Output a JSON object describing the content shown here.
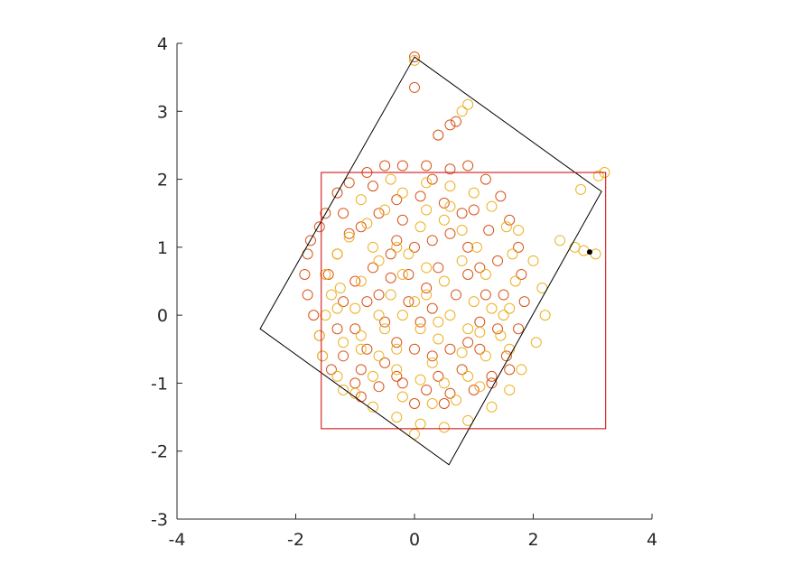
{
  "chart_data": {
    "type": "scatter",
    "title": "",
    "xlabel": "",
    "ylabel": "",
    "xlim": [
      -4,
      4
    ],
    "ylim": [
      -3,
      4
    ],
    "x_ticks": [
      -4,
      -2,
      0,
      2,
      4
    ],
    "y_ticks": [
      -3,
      -2,
      -1,
      0,
      1,
      2,
      3,
      4
    ],
    "x_tick_labels": [
      "-4",
      "-2",
      "0",
      "2",
      "4"
    ],
    "y_tick_labels": [
      "-3",
      "-2",
      "-1",
      "0",
      "1",
      "2",
      "3",
      "4"
    ],
    "grid": false,
    "legend": "none",
    "colors": {
      "series_a": "#d95319",
      "series_b": "#edb120",
      "bounding_box": "#cc0000",
      "rotated_box": "#000000",
      "axes": "#262626"
    },
    "series": [
      {
        "color": "#d95319",
        "marker": "open-circle",
        "points": [
          [
            0.0,
            3.8
          ],
          [
            0.0,
            3.35
          ],
          [
            0.4,
            2.65
          ],
          [
            0.6,
            2.8
          ],
          [
            0.7,
            2.85
          ],
          [
            -1.75,
            1.1
          ],
          [
            -1.8,
            0.9
          ],
          [
            -1.85,
            0.6
          ],
          [
            -1.8,
            0.3
          ],
          [
            -1.7,
            0.0
          ],
          [
            -1.6,
            -0.3
          ],
          [
            -1.55,
            -0.6
          ],
          [
            -1.6,
            1.3
          ],
          [
            -1.5,
            1.5
          ],
          [
            -1.3,
            1.8
          ],
          [
            -1.1,
            1.95
          ],
          [
            -0.8,
            2.1
          ],
          [
            -0.5,
            2.2
          ],
          [
            -0.2,
            2.2
          ],
          [
            0.2,
            2.2
          ],
          [
            0.6,
            2.15
          ],
          [
            0.9,
            2.2
          ],
          [
            1.2,
            2.0
          ],
          [
            1.45,
            1.75
          ],
          [
            1.6,
            1.4
          ],
          [
            1.75,
            1.0
          ],
          [
            1.8,
            0.6
          ],
          [
            1.85,
            0.2
          ],
          [
            1.75,
            -0.2
          ],
          [
            1.55,
            -0.6
          ],
          [
            1.3,
            -0.9
          ],
          [
            1.0,
            -1.1
          ],
          [
            0.6,
            -1.15
          ],
          [
            0.2,
            -1.1
          ],
          [
            -0.2,
            -1.0
          ],
          [
            -0.6,
            -1.05
          ],
          [
            -1.0,
            -1.0
          ],
          [
            -1.2,
            -0.6
          ],
          [
            -1.3,
            -0.2
          ],
          [
            -1.2,
            0.2
          ],
          [
            -1.0,
            0.5
          ],
          [
            -0.7,
            0.7
          ],
          [
            -0.4,
            0.9
          ],
          [
            0.0,
            1.0
          ],
          [
            0.3,
            1.1
          ],
          [
            0.6,
            1.2
          ],
          [
            0.9,
            1.0
          ],
          [
            1.1,
            0.7
          ],
          [
            1.2,
            0.3
          ],
          [
            1.1,
            -0.1
          ],
          [
            0.9,
            -0.4
          ],
          [
            0.6,
            -0.5
          ],
          [
            0.3,
            -0.6
          ],
          [
            0.0,
            -0.5
          ],
          [
            -0.3,
            -0.4
          ],
          [
            -0.5,
            -0.1
          ],
          [
            -0.6,
            0.3
          ],
          [
            -0.4,
            0.55
          ],
          [
            -0.1,
            0.6
          ],
          [
            0.2,
            0.4
          ],
          [
            0.3,
            0.1
          ],
          [
            0.1,
            -0.1
          ],
          [
            -0.1,
            0.2
          ],
          [
            -0.9,
            1.3
          ],
          [
            -0.6,
            1.5
          ],
          [
            -0.3,
            1.7
          ],
          [
            0.1,
            1.75
          ],
          [
            0.5,
            1.65
          ],
          [
            0.8,
            1.5
          ],
          [
            -1.1,
            1.2
          ],
          [
            -1.3,
            0.9
          ],
          [
            -1.45,
            0.6
          ],
          [
            -1.0,
            -0.2
          ],
          [
            -0.8,
            -0.5
          ],
          [
            -0.5,
            -0.7
          ],
          [
            -0.3,
            -0.9
          ],
          [
            0.4,
            -0.9
          ],
          [
            0.8,
            -0.8
          ],
          [
            1.1,
            -0.5
          ],
          [
            1.4,
            -0.2
          ],
          [
            1.5,
            0.3
          ],
          [
            1.4,
            0.8
          ],
          [
            1.25,
            1.25
          ],
          [
            1.0,
            1.55
          ],
          [
            -0.7,
            1.9
          ],
          [
            0.3,
            2.0
          ],
          [
            -1.4,
            -0.8
          ],
          [
            -0.9,
            -1.2
          ],
          [
            0.0,
            -1.3
          ],
          [
            0.5,
            -1.3
          ],
          [
            -1.2,
            1.5
          ],
          [
            -0.2,
            1.4
          ],
          [
            0.4,
            0.7
          ],
          [
            0.7,
            0.3
          ],
          [
            0.9,
            0.6
          ],
          [
            -0.3,
            1.1
          ],
          [
            -0.8,
            0.2
          ],
          [
            -0.9,
            -0.8
          ],
          [
            1.3,
            -1.0
          ],
          [
            1.6,
            -0.8
          ]
        ]
      },
      {
        "color": "#edb120",
        "marker": "open-circle",
        "points": [
          [
            0.0,
            3.75
          ],
          [
            0.9,
            3.1
          ],
          [
            0.8,
            3.0
          ],
          [
            2.8,
            1.85
          ],
          [
            3.1,
            2.05
          ],
          [
            3.2,
            2.1
          ],
          [
            2.45,
            1.1
          ],
          [
            2.7,
            1.0
          ],
          [
            2.85,
            0.95
          ],
          [
            3.05,
            0.9
          ],
          [
            1.75,
            1.25
          ],
          [
            2.0,
            0.8
          ],
          [
            2.15,
            0.4
          ],
          [
            2.2,
            0.0
          ],
          [
            2.05,
            -0.4
          ],
          [
            1.8,
            -0.8
          ],
          [
            1.6,
            -1.1
          ],
          [
            1.3,
            -1.35
          ],
          [
            0.9,
            -1.55
          ],
          [
            0.5,
            -1.65
          ],
          [
            0.1,
            -1.6
          ],
          [
            -0.3,
            -1.5
          ],
          [
            -0.7,
            -1.35
          ],
          [
            -1.0,
            -1.15
          ],
          [
            -1.3,
            -0.9
          ],
          [
            -1.55,
            -0.6
          ],
          [
            -1.6,
            -0.3
          ],
          [
            -1.5,
            0.0
          ],
          [
            -1.4,
            0.3
          ],
          [
            -1.5,
            0.6
          ],
          [
            -1.3,
            0.9
          ],
          [
            -1.1,
            1.15
          ],
          [
            -0.8,
            1.35
          ],
          [
            -0.5,
            1.55
          ],
          [
            -0.2,
            1.8
          ],
          [
            0.2,
            1.95
          ],
          [
            0.6,
            1.9
          ],
          [
            1.0,
            1.8
          ],
          [
            1.3,
            1.6
          ],
          [
            1.55,
            1.3
          ],
          [
            1.65,
            0.9
          ],
          [
            1.7,
            0.5
          ],
          [
            1.6,
            0.1
          ],
          [
            1.45,
            -0.3
          ],
          [
            1.2,
            -0.6
          ],
          [
            0.9,
            -0.9
          ],
          [
            0.5,
            -1.0
          ],
          [
            0.1,
            -0.95
          ],
          [
            -0.3,
            -0.8
          ],
          [
            -0.6,
            -0.6
          ],
          [
            -0.9,
            -0.3
          ],
          [
            -1.0,
            0.1
          ],
          [
            -0.9,
            0.5
          ],
          [
            -0.6,
            0.8
          ],
          [
            -0.3,
            1.0
          ],
          [
            0.1,
            1.3
          ],
          [
            0.5,
            1.4
          ],
          [
            0.8,
            1.25
          ],
          [
            1.05,
            1.0
          ],
          [
            1.2,
            0.6
          ],
          [
            1.3,
            0.1
          ],
          [
            1.1,
            -0.25
          ],
          [
            0.8,
            -0.55
          ],
          [
            0.4,
            -0.35
          ],
          [
            0.1,
            -0.2
          ],
          [
            -0.2,
            0.0
          ],
          [
            -0.4,
            0.3
          ],
          [
            -0.2,
            0.6
          ],
          [
            0.2,
            0.7
          ],
          [
            0.5,
            0.5
          ],
          [
            0.6,
            0.0
          ],
          [
            0.4,
            -0.1
          ],
          [
            0.0,
            0.2
          ],
          [
            0.2,
            0.3
          ],
          [
            -0.7,
            -0.9
          ],
          [
            -0.2,
            -1.2
          ],
          [
            0.3,
            -1.3
          ],
          [
            0.7,
            -1.25
          ],
          [
            1.1,
            -1.05
          ],
          [
            -1.2,
            -0.4
          ],
          [
            -1.25,
            0.4
          ],
          [
            -0.7,
            1.0
          ],
          [
            -1.2,
            -1.1
          ],
          [
            0.8,
            0.8
          ],
          [
            1.0,
            0.2
          ],
          [
            0.3,
            -0.7
          ],
          [
            -0.5,
            -0.2
          ],
          [
            -0.3,
            -0.5
          ],
          [
            -0.9,
            1.7
          ],
          [
            -0.4,
            2.0
          ],
          [
            0.6,
            1.6
          ],
          [
            1.5,
            0.0
          ],
          [
            0.0,
            -1.75
          ],
          [
            -0.9,
            -0.5
          ],
          [
            0.9,
            -0.2
          ],
          [
            -0.1,
            0.9
          ],
          [
            -0.6,
            0.0
          ],
          [
            1.6,
            -0.5
          ],
          [
            -1.3,
            0.1
          ],
          [
            0.2,
            1.55
          ]
        ]
      },
      {
        "color": "#000000",
        "marker": "filled-dot",
        "points": [
          [
            2.95,
            0.93
          ]
        ]
      }
    ],
    "rectangle": {
      "color": "#cc0000",
      "x": [
        -1.57,
        3.22
      ],
      "y": [
        -1.67,
        2.1
      ]
    },
    "rotated_box": {
      "color": "#000000",
      "corners": [
        [
          0.0,
          3.8
        ],
        [
          3.15,
          1.82
        ],
        [
          0.58,
          -2.2
        ],
        [
          -2.6,
          -0.2
        ]
      ]
    }
  }
}
